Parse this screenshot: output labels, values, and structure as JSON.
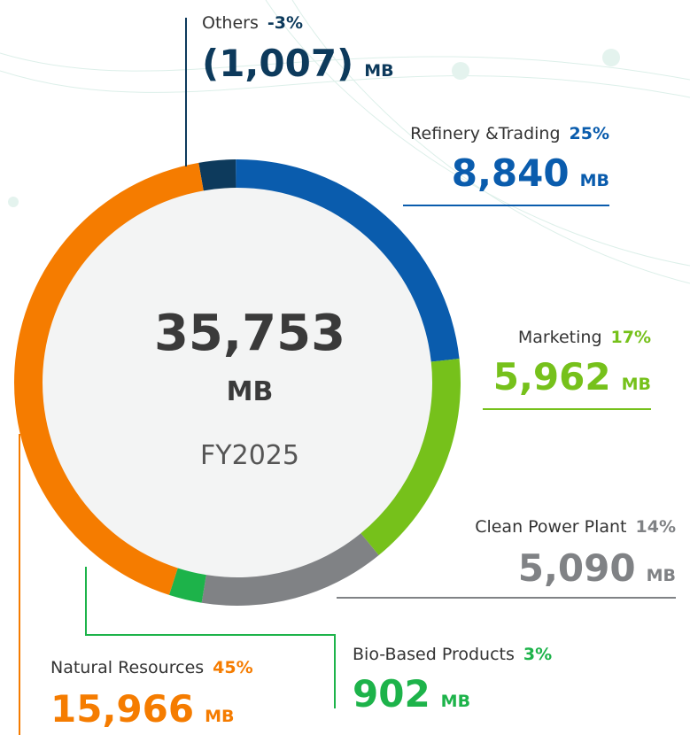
{
  "chart_data": {
    "type": "donut",
    "total": "35,753",
    "unit": "MB",
    "period": "FY2025",
    "categories": [
      "Others",
      "Refinery &Trading",
      "Marketing",
      "Clean Power Plant",
      "Bio-Based Products",
      "Natural Resources"
    ],
    "values": [
      -1007,
      8840,
      5962,
      5090,
      902,
      15966
    ],
    "value_labels": [
      "(1,007)",
      "8,840",
      "5,962",
      "5,090",
      "902",
      "15,966"
    ],
    "percent_labels": [
      "-3%",
      "25%",
      "17%",
      "14%",
      "3%",
      "45%"
    ],
    "colors": [
      "#0d3a5c",
      "#0a5cad",
      "#76c11b",
      "#808285",
      "#1db34a",
      "#f57c00"
    ]
  }
}
